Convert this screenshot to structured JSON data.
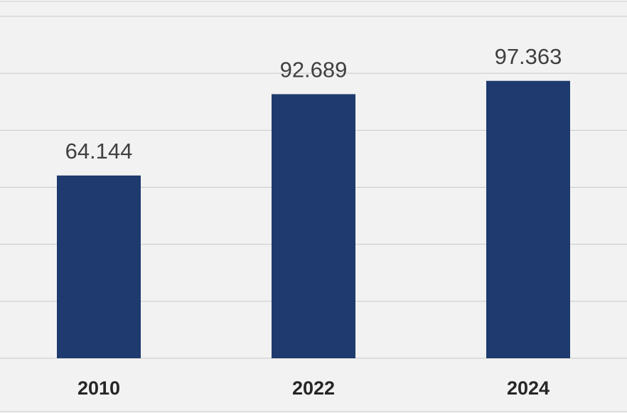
{
  "chart_data": {
    "type": "bar",
    "categories": [
      "2010",
      "2022",
      "2024"
    ],
    "values": [
      64.144,
      92.689,
      97.363
    ],
    "color": "#1e3a6e",
    "ylim": [
      0,
      120
    ],
    "yticks": [
      0,
      20,
      40,
      60,
      80,
      100,
      120
    ],
    "grid": true
  }
}
